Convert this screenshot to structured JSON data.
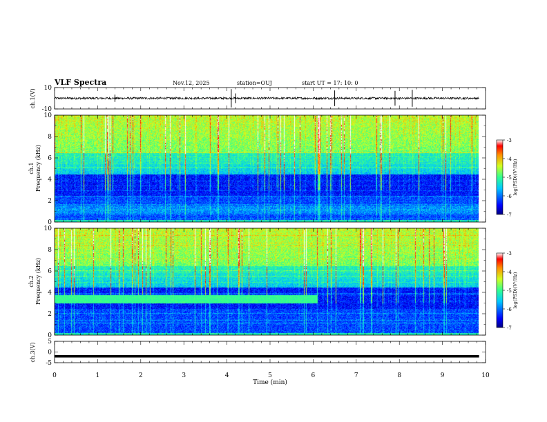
{
  "header": {
    "title": "VLF Spectra",
    "date": "Nov.12, 2025",
    "station": "station=OUJ",
    "start": "start  UT =   17: 10: 0"
  },
  "chart_data": [
    {
      "type": "line",
      "name": "ch1-waveform",
      "ylabel": "ch.1(V)",
      "ylim": [
        -10,
        10
      ],
      "yticks": [
        "10",
        "-10"
      ],
      "xlim": [
        0,
        10
      ],
      "description_values": {
        "baseline": 0,
        "noise_amplitude": 1,
        "spikes_at_min": [
          1.4,
          4.1,
          4.2,
          6.5,
          7.9,
          8.3
        ]
      }
    },
    {
      "type": "heatmap",
      "name": "ch1-spectrogram",
      "ylabel_line1": "ch.1",
      "ylabel_line2": "Frequency (kHz)",
      "ylim": [
        0,
        10
      ],
      "yticks": [
        "0",
        "2",
        "4",
        "6",
        "8",
        "10"
      ],
      "xlim": [
        0,
        9.85
      ],
      "colorbar": {
        "label": "log(PSD)(V²/Hz)",
        "range": [
          -7,
          -3
        ],
        "ticks": [
          "-3",
          "-4",
          "-5",
          "-6",
          "-7"
        ]
      }
    },
    {
      "type": "heatmap",
      "name": "ch2-spectrogram",
      "ylabel_line1": "ch.2",
      "ylabel_line2": "Frequency (kHz)",
      "ylim": [
        0,
        10
      ],
      "yticks": [
        "0",
        "2",
        "4",
        "6",
        "8",
        "10"
      ],
      "xlim": [
        0,
        9.85
      ],
      "band_kHz": [
        3.0,
        3.8
      ],
      "band_end_min": 6.1,
      "colorbar": {
        "label": "log(PSD)(V²/Hz)",
        "range": [
          -7,
          -3
        ],
        "ticks": [
          "-3",
          "-4",
          "-5",
          "-6",
          "-7"
        ]
      }
    },
    {
      "type": "line",
      "name": "ch3-waveform",
      "ylabel": "ch.3(V)",
      "ylim": [
        -5,
        5
      ],
      "yticks": [
        "5",
        "0",
        "-5"
      ],
      "xlim": [
        0,
        10
      ],
      "xlabel": "Time (min)",
      "xticks": [
        "0",
        "1",
        "2",
        "3",
        "4",
        "5",
        "6",
        "7",
        "8",
        "9",
        "10"
      ],
      "value": -2
    }
  ]
}
